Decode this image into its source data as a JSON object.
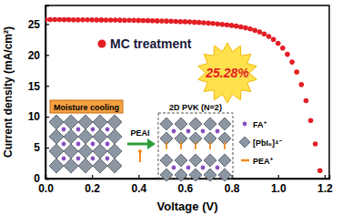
{
  "chart_data": {
    "type": "scatter",
    "x_label": "Voltage (V)",
    "y_label": "Current density (mA/cm²)",
    "x": [
      0,
      0.02,
      0.04,
      0.06,
      0.08,
      0.1,
      0.12,
      0.14,
      0.16,
      0.18,
      0.2,
      0.22,
      0.24,
      0.26,
      0.28,
      0.3,
      0.32,
      0.34,
      0.36,
      0.38,
      0.4,
      0.42,
      0.44,
      0.46,
      0.48,
      0.5,
      0.52,
      0.54,
      0.56,
      0.58,
      0.6,
      0.62,
      0.64,
      0.66,
      0.68,
      0.7,
      0.72,
      0.74,
      0.76,
      0.78,
      0.8,
      0.82,
      0.84,
      0.86,
      0.88,
      0.9,
      0.92,
      0.94,
      0.96,
      0.98,
      1.0,
      1.02,
      1.04,
      1.06,
      1.08,
      1.1,
      1.12,
      1.14,
      1.16,
      1.18
    ],
    "series": [
      {
        "name": "MC treatment",
        "color": "#e31e24",
        "marker": "circle",
        "values": [
          25.72,
          25.72,
          25.71,
          25.71,
          25.7,
          25.7,
          25.69,
          25.69,
          25.68,
          25.68,
          25.67,
          25.66,
          25.66,
          25.65,
          25.64,
          25.63,
          25.62,
          25.61,
          25.6,
          25.59,
          25.58,
          25.56,
          25.55,
          25.53,
          25.51,
          25.49,
          25.47,
          25.45,
          25.42,
          25.39,
          25.36,
          25.33,
          25.29,
          25.25,
          25.2,
          25.15,
          25.09,
          25.02,
          24.95,
          24.87,
          24.77,
          24.66,
          24.53,
          24.38,
          24.2,
          23.98,
          23.72,
          23.4,
          23.0,
          22.5,
          21.88,
          21.1,
          20.1,
          18.85,
          17.25,
          15.2,
          12.6,
          9.4,
          5.6,
          1.3
        ]
      }
    ],
    "xlim": [
      0,
      1.22
    ],
    "ylim": [
      0,
      28
    ],
    "xticks": [
      {
        "value": 0,
        "label": "0.0"
      },
      {
        "value": 0.2,
        "label": "0.2"
      },
      {
        "value": 0.4,
        "label": "0.4"
      },
      {
        "value": 0.6,
        "label": "0.6"
      },
      {
        "value": 0.8,
        "label": "0.8"
      },
      {
        "value": 1,
        "label": "1.0"
      },
      {
        "value": 1.2,
        "label": "1.2"
      }
    ],
    "yticks": [
      0,
      5,
      10,
      15,
      20,
      25
    ],
    "grid": false,
    "annotations": {
      "efficiency": "25.28%",
      "process": "Moisture cooling",
      "reagent": "PEAI",
      "structure": "2D PVK (N=2)",
      "species": [
        "FA⁺",
        "[PbI₆]⁴⁻",
        "PEA⁺"
      ]
    }
  }
}
